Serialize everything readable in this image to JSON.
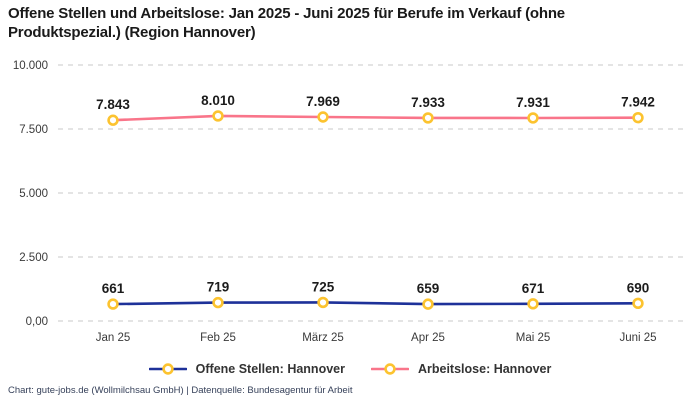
{
  "title": "Offene Stellen und Arbeitslose: Jan 2025 - Juni 2025 für Berufe im Verkauf (ohne Produktspezial.) (Region Hannover)",
  "footer": "Chart: gute-jobs.de (Wollmilchsau GmbH) | Datenquelle: Bundesagentur für Arbeit",
  "colors": {
    "open_positions": "#1e3199",
    "unemployed": "#f9758a",
    "marker_stroke": "#fcc32f",
    "marker_fill": "#ffffff",
    "gridline": "#c9c9c9",
    "tick_text": "#3a3a3a",
    "label_text": "#1c1c1c",
    "title_text": "#1a1a1a"
  },
  "chart_data": {
    "type": "line",
    "title": "Offene Stellen und Arbeitslose: Jan 2025 - Juni 2025 für Berufe im Verkauf (ohne Produktspezial.) (Region Hannover)",
    "categories": [
      "Jan 25",
      "Feb 25",
      "März 25",
      "Apr 25",
      "Mai 25",
      "Juni 25"
    ],
    "series": [
      {
        "name": "Offene Stellen: Hannover",
        "values": [
          661,
          719,
          725,
          659,
          671,
          690
        ],
        "value_labels": [
          "661",
          "719",
          "725",
          "659",
          "671",
          "690"
        ],
        "color_key": "open_positions"
      },
      {
        "name": "Arbeitslose: Hannover",
        "values": [
          7843,
          8010,
          7969,
          7933,
          7931,
          7942
        ],
        "value_labels": [
          "7.843",
          "8.010",
          "7.969",
          "7.933",
          "7.931",
          "7.942"
        ],
        "color_key": "unemployed"
      }
    ],
    "y_ticks": [
      {
        "value": 0,
        "label": "0,00"
      },
      {
        "value": 2500,
        "label": "2.500"
      },
      {
        "value": 5000,
        "label": "5.000"
      },
      {
        "value": 7500,
        "label": "7.500"
      },
      {
        "value": 10000,
        "label": "10.000"
      }
    ],
    "ylim": [
      0,
      10000
    ],
    "grid": "horizontal-dashed",
    "legend_position": "bottom",
    "marker": "circle-open"
  },
  "legend": {
    "items": [
      {
        "label": "Offene Stellen: Hannover",
        "color_key": "open_positions"
      },
      {
        "label": "Arbeitslose: Hannover",
        "color_key": "unemployed"
      }
    ]
  }
}
